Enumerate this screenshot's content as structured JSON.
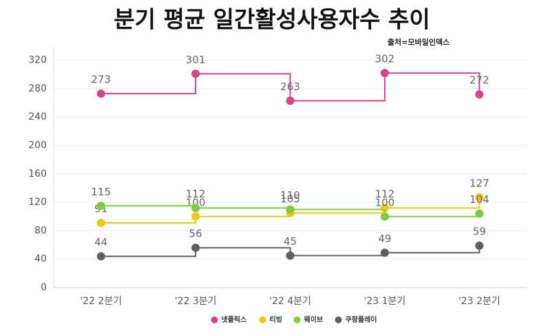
{
  "chart_data": {
    "type": "line",
    "step": "post",
    "title": "분기 평균 일간활성사용자수 추이",
    "source": "출처=모바일인덱스",
    "categories": [
      "'22 2분기",
      "'22 3분기",
      "'22 4분기",
      "'23 1분기",
      "'23 2분기"
    ],
    "series": [
      {
        "name": "넷플릭스",
        "color": "#d6448a",
        "values": [
          273,
          301,
          263,
          302,
          272
        ]
      },
      {
        "name": "티빙",
        "color": "#f2c80f",
        "values": [
          91,
          100,
          105,
          112,
          127
        ]
      },
      {
        "name": "웨이브",
        "color": "#7dcc3b",
        "values": [
          115,
          112,
          110,
          100,
          104
        ]
      },
      {
        "name": "쿠팡플레이",
        "color": "#5f5f5f",
        "values": [
          44,
          56,
          45,
          49,
          59
        ]
      }
    ],
    "ylim": [
      0,
      340
    ],
    "yticks": [
      0,
      40,
      80,
      120,
      160,
      200,
      240,
      280,
      320
    ],
    "grid": true,
    "legend": "bottom"
  }
}
